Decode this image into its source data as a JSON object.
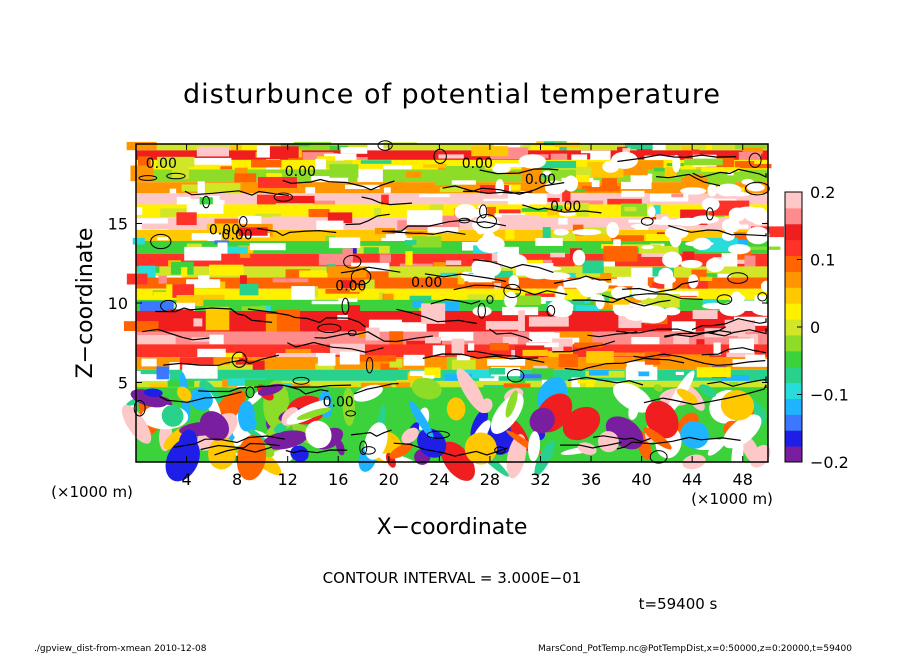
{
  "chart_data": {
    "type": "heatmap",
    "title": "disturbunce of potential temperature",
    "xlabel": "X−coordinate",
    "ylabel": "Z−coordinate",
    "x_unit_left": "(×1000 m)",
    "x_unit_right": "(×1000 m)",
    "xlim": [
      0,
      50
    ],
    "ylim": [
      0,
      20
    ],
    "x_ticks": [
      {
        "value": 4,
        "label": "4"
      },
      {
        "value": 8,
        "label": "8"
      },
      {
        "value": 12,
        "label": "12"
      },
      {
        "value": 16,
        "label": "16"
      },
      {
        "value": 20,
        "label": "20"
      },
      {
        "value": 24,
        "label": "24"
      },
      {
        "value": 28,
        "label": "28"
      },
      {
        "value": 32,
        "label": "32"
      },
      {
        "value": 36,
        "label": "36"
      },
      {
        "value": 40,
        "label": "40"
      },
      {
        "value": 44,
        "label": "44"
      },
      {
        "value": 48,
        "label": "48"
      }
    ],
    "y_ticks": [
      {
        "value": 5,
        "label": "5"
      },
      {
        "value": 10,
        "label": "10"
      },
      {
        "value": 15,
        "label": "15"
      }
    ],
    "colorbar": {
      "range": [
        -0.2,
        0.2
      ],
      "ticks": [
        {
          "value": 0.2,
          "label": "0.2"
        },
        {
          "value": 0.1,
          "label": "0.1"
        },
        {
          "value": 0,
          "label": "0"
        },
        {
          "value": -0.1,
          "label": "−0.1"
        },
        {
          "value": -0.2,
          "label": "−0.2"
        }
      ],
      "colors": [
        "#7a1ea0",
        "#1e1ee6",
        "#3c78ff",
        "#1eb4ff",
        "#28dcdc",
        "#28d28c",
        "#3cd23c",
        "#8cdc28",
        "#d2e628",
        "#fff000",
        "#ffc800",
        "#ff9600",
        "#ff6400",
        "#ff3228",
        "#f01e1e",
        "#ff8c8c",
        "#ffc8c8"
      ]
    },
    "contour_labels": [
      {
        "x": 2,
        "z": 18.5,
        "text": "0.00"
      },
      {
        "x": 13,
        "z": 18.0,
        "text": "0.00"
      },
      {
        "x": 27,
        "z": 18.5,
        "text": "0.00"
      },
      {
        "x": 32,
        "z": 17.5,
        "text": "0.00"
      },
      {
        "x": 7,
        "z": 14.3,
        "text": "0.00"
      },
      {
        "x": 34,
        "z": 15.8,
        "text": "0.00"
      },
      {
        "x": 8,
        "z": 14.0,
        "text": "0.00"
      },
      {
        "x": 17,
        "z": 10.8,
        "text": "0.00"
      },
      {
        "x": 23,
        "z": 11.0,
        "text": "0.00"
      },
      {
        "x": 16,
        "z": 3.5,
        "text": "0.00"
      }
    ],
    "contour_interval_text": "CONTOUR INTERVAL = 3.000E−01",
    "time_text": "t=59400 s"
  },
  "footer": {
    "left": "./gpview_dist-from-xmean  2010-12-08",
    "right": "MarsCond_PotTemp.nc@PotTempDist,x=0:50000,z=0:20000,t=59400"
  }
}
